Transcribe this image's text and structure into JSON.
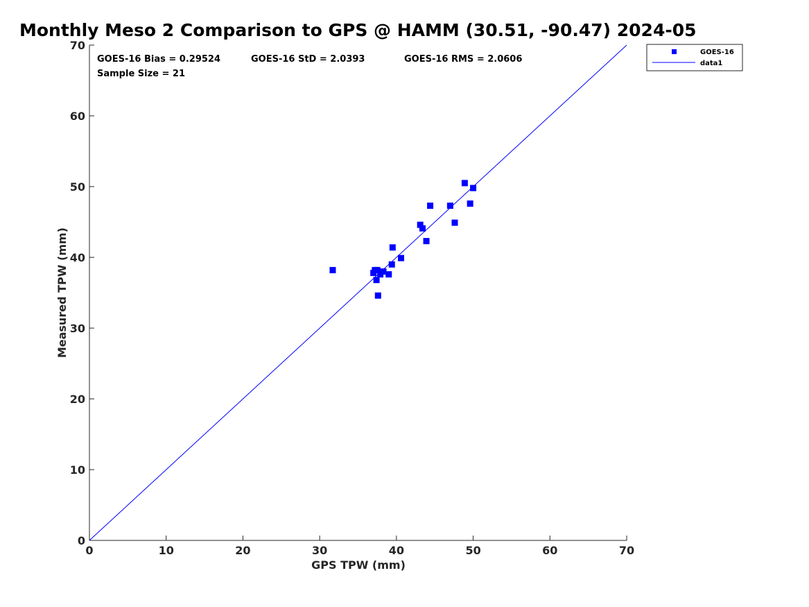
{
  "chart_data": {
    "type": "scatter",
    "title": "Monthly Meso 2 Comparison to GPS @ HAMM (30.51, -90.47) 2024-05",
    "xlabel": "GPS TPW (mm)",
    "ylabel": "Measured TPW (mm)",
    "xlim": [
      0,
      70
    ],
    "ylim": [
      0,
      70
    ],
    "xticks": [
      "0",
      "10",
      "20",
      "30",
      "40",
      "50",
      "60",
      "70"
    ],
    "yticks": [
      "0",
      "10",
      "20",
      "30",
      "40",
      "50",
      "60",
      "70"
    ],
    "grid": false,
    "legend_position": "top-right outside",
    "stats": {
      "bias": "GOES-16 Bias = 0.29524",
      "std": "GOES-16 StD = 2.0393",
      "rms": "GOES-16 RMS = 2.0606",
      "sample": "Sample Size = 21"
    },
    "series": [
      {
        "name": "GOES-16",
        "kind": "scatter",
        "marker": "square",
        "color": "#0000ff",
        "points": [
          [
            31.7,
            38.2
          ],
          [
            37.0,
            37.8
          ],
          [
            37.2,
            38.2
          ],
          [
            37.5,
            38.2
          ],
          [
            37.4,
            36.8
          ],
          [
            37.9,
            37.6
          ],
          [
            38.3,
            38.0
          ],
          [
            37.6,
            34.6
          ],
          [
            39.0,
            37.6
          ],
          [
            39.4,
            39.0
          ],
          [
            39.5,
            41.4
          ],
          [
            40.6,
            39.9
          ],
          [
            43.1,
            44.6
          ],
          [
            43.4,
            44.1
          ],
          [
            43.9,
            42.3
          ],
          [
            44.4,
            47.3
          ],
          [
            47.0,
            47.3
          ],
          [
            47.6,
            44.9
          ],
          [
            48.9,
            50.5
          ],
          [
            49.6,
            47.6
          ],
          [
            50.0,
            49.8
          ]
        ]
      },
      {
        "name": "data1",
        "kind": "line",
        "color": "#0000ff",
        "points": [
          [
            0,
            0
          ],
          [
            70,
            70
          ]
        ]
      }
    ]
  }
}
